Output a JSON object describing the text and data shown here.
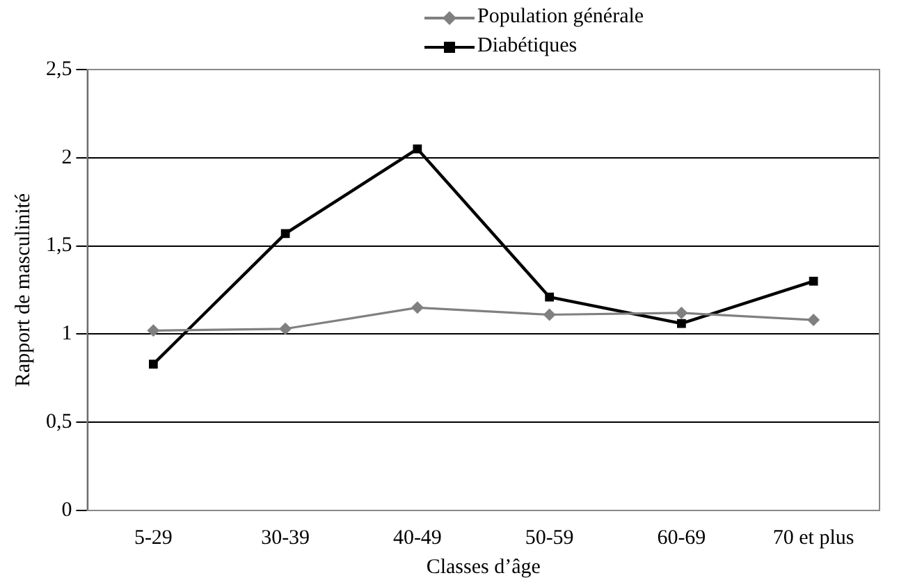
{
  "chart_data": {
    "type": "line",
    "xlabel": "Classes d’âge",
    "ylabel": "Rapport de masculinité",
    "categories": [
      "5-29",
      "30-39",
      "40-49",
      "50-59",
      "60-69",
      "70 et plus"
    ],
    "series": [
      {
        "name": "Population générale",
        "color": "#808080",
        "marker": "diamond",
        "values": [
          1.02,
          1.03,
          1.15,
          1.11,
          1.12,
          1.08
        ]
      },
      {
        "name": "Diabétiques",
        "color": "#000000",
        "marker": "square",
        "values": [
          0.83,
          1.57,
          2.05,
          1.21,
          1.06,
          1.3
        ]
      }
    ],
    "ylim": [
      0,
      2.5
    ],
    "yticks": [
      0,
      {
        "value": 0.5,
        "label": "0,5"
      },
      1,
      {
        "value": 1.5,
        "label": "1,5"
      },
      2,
      {
        "value": 2.5,
        "label": "2,5"
      }
    ],
    "grid": "y",
    "legend": "top right",
    "line_style": "solid"
  }
}
